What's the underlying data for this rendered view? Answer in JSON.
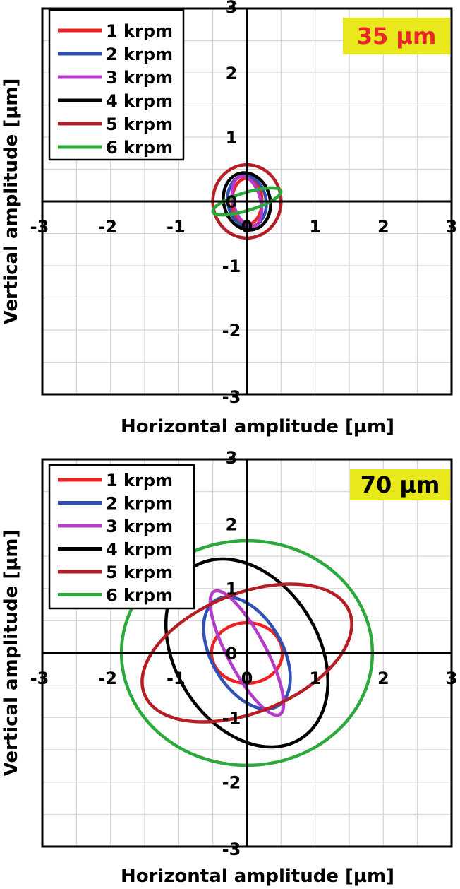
{
  "chart_data": [
    {
      "type": "line",
      "badge": "35 µm",
      "badge_color": "#e8e81c",
      "badge_text_color": "#e8262a",
      "xlabel": "Horizontal amplitude [µm]",
      "ylabel": "Vertical amplitude [µm]",
      "xlim": [
        -3,
        3
      ],
      "ylim": [
        -3,
        3
      ],
      "xticks": [
        "-3",
        "-2",
        "-1",
        "0",
        "1",
        "2",
        "3"
      ],
      "yticks": [
        "-3",
        "-2",
        "-1",
        "0",
        "1",
        "2",
        "3"
      ],
      "grid": true,
      "legend_position": "top-left",
      "series": [
        {
          "name": "1 krpm",
          "color": "#ee2222",
          "center": [
            0,
            0
          ],
          "semi_axes": [
            0.22,
            0.36
          ],
          "angle_deg": 0
        },
        {
          "name": "2 krpm",
          "color": "#3050b4",
          "center": [
            0,
            0
          ],
          "semi_axes": [
            0.28,
            0.4
          ],
          "angle_deg": 10
        },
        {
          "name": "3 krpm",
          "color": "#b43cc8",
          "center": [
            0,
            0
          ],
          "semi_axes": [
            0.2,
            0.4
          ],
          "angle_deg": 15
        },
        {
          "name": "4 krpm",
          "color": "#000000",
          "center": [
            0,
            0
          ],
          "semi_axes": [
            0.34,
            0.45
          ],
          "angle_deg": 15
        },
        {
          "name": "5 krpm",
          "color": "#b41e24",
          "center": [
            0,
            0
          ],
          "semi_axes": [
            0.5,
            0.57
          ],
          "angle_deg": 0
        },
        {
          "name": "6 krpm",
          "color": "#2ca83c",
          "center": [
            0,
            0
          ],
          "semi_axes": [
            0.52,
            0.14
          ],
          "angle_deg": 17
        }
      ]
    },
    {
      "type": "line",
      "badge": "70 µm",
      "badge_color": "#e8e81c",
      "badge_text_color": "#000000",
      "xlabel": "Horizontal amplitude [µm]",
      "ylabel": "Vertical amplitude [µm]",
      "xlim": [
        -3,
        3
      ],
      "ylim": [
        -3,
        3
      ],
      "xticks": [
        "-3",
        "-2",
        "-1",
        "0",
        "1",
        "2",
        "3"
      ],
      "yticks": [
        "-3",
        "-2",
        "-1",
        "0",
        "1",
        "2",
        "3"
      ],
      "grid": true,
      "legend_position": "top-left",
      "series": [
        {
          "name": "1 krpm",
          "color": "#ee2222",
          "center": [
            0,
            0
          ],
          "semi_axes": [
            0.52,
            0.47
          ],
          "angle_deg": 0
        },
        {
          "name": "2 krpm",
          "color": "#3050b4",
          "center": [
            0,
            0
          ],
          "semi_axes": [
            0.52,
            0.95
          ],
          "angle_deg": 30
        },
        {
          "name": "3 krpm",
          "color": "#b43cc8",
          "center": [
            0,
            0
          ],
          "semi_axes": [
            0.28,
            1.08
          ],
          "angle_deg": 28
        },
        {
          "name": "4 krpm",
          "color": "#000000",
          "center": [
            0,
            0
          ],
          "semi_axes": [
            1.05,
            1.57
          ],
          "angle_deg": 32
        },
        {
          "name": "5 krpm",
          "color": "#b41e24",
          "center": [
            0,
            0
          ],
          "semi_axes": [
            1.62,
            0.92
          ],
          "angle_deg": 22
        },
        {
          "name": "6 krpm",
          "color": "#2ca83c",
          "center": [
            0,
            0
          ],
          "semi_axes": [
            1.84,
            1.74
          ],
          "angle_deg": 0
        }
      ]
    }
  ]
}
